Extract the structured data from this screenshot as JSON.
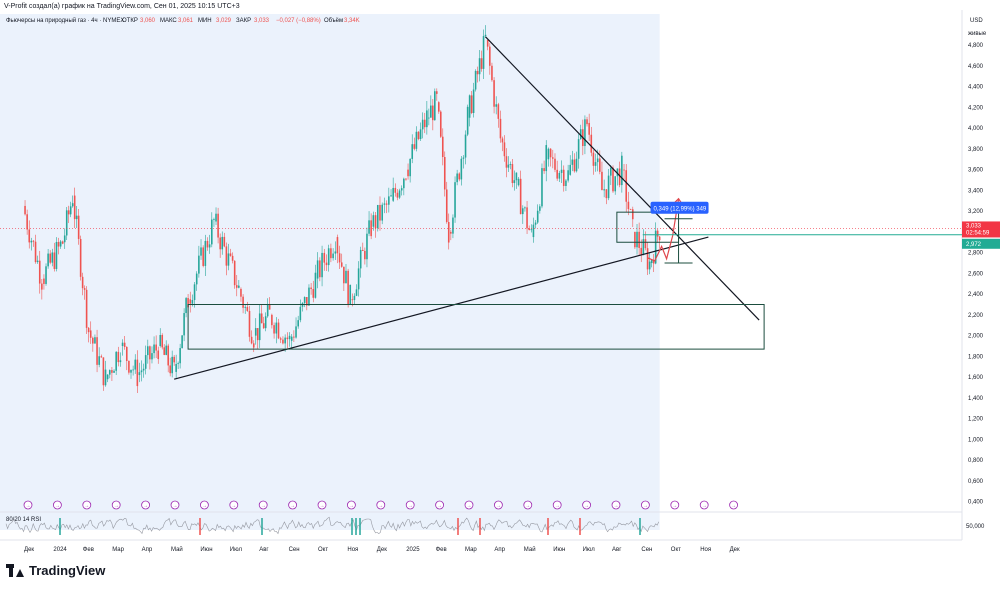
{
  "header": {
    "attribution": "V-Profit создал(а) график на TradingView.com, Сен 01, 2025 10:15 UTC+3",
    "symbol": "Фьючерсы на природный газ · 4ч · NYMEX",
    "ohlc": [
      {
        "label": "ОТКР",
        "value": "3,060"
      },
      {
        "label": "МАКС",
        "value": "3,061"
      },
      {
        "label": "МИН",
        "value": "3,029"
      },
      {
        "label": "ЗАКР",
        "value": "3,033"
      }
    ],
    "change": "−0,027 (−0,88%)",
    "volume_label": "Объём",
    "volume_value": "3,34K"
  },
  "axis_header": {
    "currency": "USD",
    "mode": "живые"
  },
  "badges": {
    "price": "3,033",
    "countdown": "02:54:59",
    "level": "2,972",
    "measure": "0,349 (12,99%) 349"
  },
  "rsi": {
    "title": "80/20 14 RSI",
    "value": "50,000"
  },
  "footer": {
    "brand": "TradingView"
  },
  "colors": {
    "up": "#26a69a",
    "down": "#ef5350",
    "trendline": "#131722",
    "box": "#1b4d3e",
    "arrow": "#e0474c",
    "projection_band": "#dbe7f9",
    "price_badge": "#f23645",
    "level_badge": "#22ab94",
    "measure_badge": "#2962ff"
  },
  "chart_data": {
    "type": "candlestick",
    "title": "Фьючерсы на природный газ · 4ч · NYMEX",
    "xlabel": "",
    "ylabel": "",
    "y_unit": "USD",
    "ylim": [
      0.3,
      5.1
    ],
    "y_ticks": [
      "4,800",
      "4,600",
      "4,400",
      "4,200",
      "4,000",
      "3,800",
      "3,600",
      "3,400",
      "3,200",
      "3,000",
      "2,800",
      "2,600",
      "2,400",
      "2,200",
      "2,000",
      "1,800",
      "1,600",
      "1,400",
      "1,200",
      "1,000",
      "0,800",
      "0,600",
      "0,400"
    ],
    "x_ticks": [
      "Дек",
      "2024",
      "Фев",
      "Мар",
      "Апр",
      "Май",
      "Июн",
      "Июл",
      "Авг",
      "Сен",
      "Окт",
      "Ноя",
      "Дек",
      "2025",
      "Фев",
      "Мар",
      "Апр",
      "Май",
      "Июн",
      "Июл",
      "Авг",
      "Сен",
      "Окт",
      "Ноя",
      "Дек"
    ],
    "grid": true,
    "price_path": [
      {
        "date": "2023-12-01",
        "price": 3.25
      },
      {
        "date": "2023-12-20",
        "price": 2.55
      },
      {
        "date": "2024-01-10",
        "price": 2.9
      },
      {
        "date": "2024-01-20",
        "price": 3.35
      },
      {
        "date": "2024-02-05",
        "price": 2.05
      },
      {
        "date": "2024-02-22",
        "price": 1.58
      },
      {
        "date": "2024-03-08",
        "price": 1.9
      },
      {
        "date": "2024-03-25",
        "price": 1.62
      },
      {
        "date": "2024-04-15",
        "price": 1.9
      },
      {
        "date": "2024-05-01",
        "price": 1.65
      },
      {
        "date": "2024-05-15",
        "price": 2.35
      },
      {
        "date": "2024-06-10",
        "price": 3.1
      },
      {
        "date": "2024-07-05",
        "price": 2.45
      },
      {
        "date": "2024-07-20",
        "price": 2.0
      },
      {
        "date": "2024-08-05",
        "price": 2.2
      },
      {
        "date": "2024-08-25",
        "price": 1.95
      },
      {
        "date": "2024-09-20",
        "price": 2.55
      },
      {
        "date": "2024-10-10",
        "price": 2.95
      },
      {
        "date": "2024-10-25",
        "price": 2.35
      },
      {
        "date": "2024-11-15",
        "price": 3.05
      },
      {
        "date": "2024-12-05",
        "price": 3.3
      },
      {
        "date": "2024-12-20",
        "price": 3.6
      },
      {
        "date": "2025-01-10",
        "price": 4.1
      },
      {
        "date": "2025-01-20",
        "price": 4.25
      },
      {
        "date": "2025-02-01",
        "price": 3.0
      },
      {
        "date": "2025-02-20",
        "price": 4.1
      },
      {
        "date": "2025-03-10",
        "price": 4.85
      },
      {
        "date": "2025-03-25",
        "price": 3.9
      },
      {
        "date": "2025-04-10",
        "price": 3.45
      },
      {
        "date": "2025-04-25",
        "price": 2.95
      },
      {
        "date": "2025-05-10",
        "price": 3.7
      },
      {
        "date": "2025-06-01",
        "price": 3.55
      },
      {
        "date": "2025-06-20",
        "price": 4.05
      },
      {
        "date": "2025-07-05",
        "price": 3.4
      },
      {
        "date": "2025-07-25",
        "price": 3.6
      },
      {
        "date": "2025-08-05",
        "price": 3.0
      },
      {
        "date": "2025-08-22",
        "price": 2.7
      },
      {
        "date": "2025-09-01",
        "price": 3.03
      }
    ],
    "annotations": {
      "descending_trendline": [
        {
          "date": "2025-03-10",
          "price": 4.88
        },
        {
          "date": "2025-12-10",
          "price": 2.15
        }
      ],
      "ascending_trendline": [
        {
          "date": "2024-05-01",
          "price": 1.58
        },
        {
          "date": "2025-10-20",
          "price": 2.95
        }
      ],
      "support_zone": {
        "from": "2024-05-15",
        "to": "2025-12-15",
        "low": 1.87,
        "high": 2.3
      },
      "consolidation_box": {
        "from": "2025-07-20",
        "to": "2025-09-20",
        "low": 2.9,
        "high": 3.19
      },
      "measure": {
        "from": "2025-09-20",
        "low": 2.7,
        "high": 3.05,
        "label": "0,349 (12,99%) 349"
      },
      "horizontal_level": 2.972,
      "last_price": 3.033
    }
  }
}
